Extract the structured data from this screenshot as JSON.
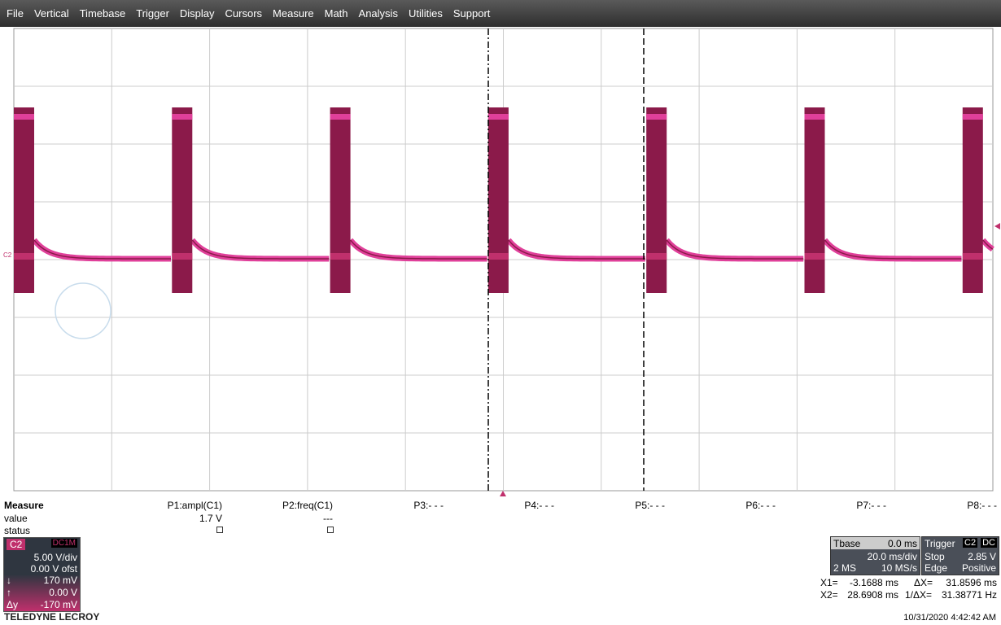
{
  "menu": [
    "File",
    "Vertical",
    "Timebase",
    "Trigger",
    "Display",
    "Cursors",
    "Measure",
    "Math",
    "Analysis",
    "Utilities",
    "Support"
  ],
  "scope": {
    "channel_marker": "C2"
  },
  "measure": {
    "title": "Measure",
    "params": [
      "P1:ampl(C1)",
      "P2:freq(C1)",
      "P3:- - -",
      "P4:- - -",
      "P5:- - -",
      "P6:- - -",
      "P7:- - -",
      "P8:- - -"
    ],
    "value_label": "value",
    "values": [
      "1.7 V",
      "---"
    ],
    "status_label": "status"
  },
  "channel": {
    "name": "C2",
    "coupling": "DC1M",
    "scale": "5.00 V/div",
    "offset": "0.00 V ofst",
    "cursor1_icon": "↓",
    "cursor1": "170 mV",
    "cursor2_icon": "↑",
    "cursor2": "0.00 V",
    "delta_label": "Δy",
    "delta": "-170 mV"
  },
  "timebase": {
    "label": "Tbase",
    "delay": "0.0 ms",
    "scale": "20.0 ms/div",
    "points": "2 MS",
    "rate": "10 MS/s"
  },
  "trigger": {
    "label": "Trigger",
    "source": "C2",
    "coupling": "DC",
    "mode": "Stop",
    "level": "2.85 V",
    "type": "Edge",
    "slope": "Positive"
  },
  "cursors": {
    "x1_label": "X1=",
    "x1": "-3.1688 ms",
    "dx_label": "ΔX=",
    "dx": "31.8596 ms",
    "x2_label": "X2=",
    "x2": "28.6908 ms",
    "inv_label": "1/ΔX=",
    "inv": "31.38771 Hz"
  },
  "brand": "TELEDYNE LECROY",
  "timestamp": "10/31/2020 4:42:42 AM"
}
